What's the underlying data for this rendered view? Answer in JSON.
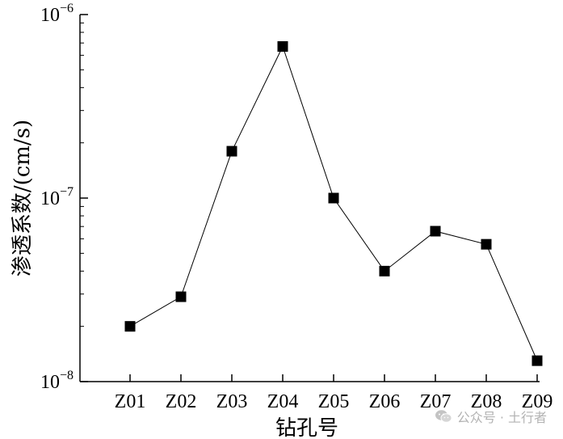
{
  "chart_data": {
    "type": "line",
    "categories": [
      "Z01",
      "Z02",
      "Z03",
      "Z04",
      "Z05",
      "Z06",
      "Z07",
      "Z08",
      "Z09"
    ],
    "values": [
      2e-08,
      2.9e-08,
      1.8e-07,
      6.7e-07,
      1e-07,
      4e-08,
      6.6e-08,
      5.6e-08,
      1.3e-08
    ],
    "xlabel": "钻孔号",
    "ylabel": "渗透系数/(cm/s)",
    "yscale": "log",
    "ylim": [
      1e-08,
      1e-06
    ],
    "yticks": [
      {
        "value": 1e-08,
        "base": "10",
        "exp": "−8"
      },
      {
        "value": 1e-07,
        "base": "10",
        "exp": "−7"
      },
      {
        "value": 1e-06,
        "base": "10",
        "exp": "−6"
      }
    ],
    "marker": "square",
    "color": "#000000",
    "grid": false,
    "legend": "none"
  },
  "watermark": {
    "text": "公众号 · 土行者",
    "icon": "wechat-icon"
  }
}
